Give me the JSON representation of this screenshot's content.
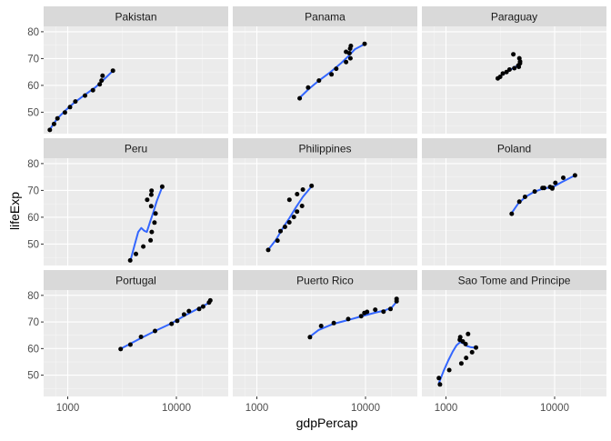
{
  "chart_data": {
    "type": "scatter",
    "facet_variable": "country",
    "xlabel": "gdpPercap",
    "ylabel": "lifeExp",
    "x_scale": "log10",
    "xlim": [
      600,
      30000
    ],
    "ylim": [
      42,
      82
    ],
    "x_ticks": [
      1000,
      10000
    ],
    "x_tick_labels": [
      "1000",
      "10000"
    ],
    "y_ticks": [
      50,
      60,
      70,
      80
    ],
    "y_tick_labels": [
      "50",
      "60",
      "70",
      "80"
    ],
    "smooth": true,
    "grid": true,
    "colors": {
      "panel_bg": "#ebebeb",
      "strip_bg": "#d9d9d9",
      "grid_major": "#ffffff",
      "point": "#000000",
      "smooth_line": "#3366ff",
      "text": "#4d4d4d",
      "strip_text": "#1a1a1a",
      "axis_title": "#000000"
    },
    "facets": [
      {
        "name": "Pakistan",
        "points": [
          [
            684,
            43.4
          ],
          [
            747,
            45.6
          ],
          [
            804,
            47.7
          ],
          [
            942,
            49.9
          ],
          [
            1050,
            51.9
          ],
          [
            1176,
            54.0
          ],
          [
            1443,
            56.2
          ],
          [
            1705,
            58.2
          ],
          [
            1972,
            60.4
          ],
          [
            2049,
            61.8
          ],
          [
            2092,
            63.6
          ],
          [
            2606,
            65.5
          ]
        ]
      },
      {
        "name": "Panama",
        "points": [
          [
            2480,
            55.2
          ],
          [
            2962,
            59.2
          ],
          [
            3729,
            61.8
          ],
          [
            4869,
            64.1
          ],
          [
            5373,
            66.2
          ],
          [
            6618,
            68.7
          ],
          [
            7257,
            70.1
          ],
          [
            7113,
            72.0
          ],
          [
            6616,
            72.5
          ],
          [
            7225,
            73.7
          ],
          [
            7340,
            74.7
          ],
          [
            9809,
            75.5
          ]
        ]
      },
      {
        "name": "Paraguay",
        "points": [
          [
            3000,
            62.6
          ],
          [
            3156,
            63.2
          ],
          [
            3335,
            64.4
          ],
          [
            3610,
            65.0
          ],
          [
            3849,
            65.9
          ],
          [
            4258,
            66.4
          ],
          [
            4679,
            66.9
          ],
          [
            4623,
            67.4
          ],
          [
            4801,
            68.2
          ],
          [
            4811,
            68.9
          ],
          [
            4731,
            70.1
          ],
          [
            4173,
            71.6
          ]
        ]
      },
      {
        "name": "Peru",
        "points": [
          [
            3759,
            43.9
          ],
          [
            4245,
            46.3
          ],
          [
            4957,
            49.1
          ],
          [
            5788,
            51.4
          ],
          [
            5938,
            54.5
          ],
          [
            6281,
            58.0
          ],
          [
            6434,
            61.4
          ],
          [
            5868,
            64.1
          ],
          [
            5388,
            66.5
          ],
          [
            5872,
            68.4
          ],
          [
            5909,
            69.9
          ],
          [
            7409,
            71.4
          ]
        ]
      },
      {
        "name": "Philippines",
        "points": [
          [
            1273,
            47.8
          ],
          [
            1548,
            51.3
          ],
          [
            1650,
            54.8
          ],
          [
            1814,
            56.4
          ],
          [
            1989,
            58.1
          ],
          [
            2189,
            60.1
          ],
          [
            2342,
            62.1
          ],
          [
            2604,
            64.2
          ],
          [
            1992,
            66.5
          ],
          [
            2350,
            68.6
          ],
          [
            2650,
            70.3
          ],
          [
            3190,
            71.7
          ]
        ]
      },
      {
        "name": "Poland",
        "points": [
          [
            4029,
            61.3
          ],
          [
            4734,
            65.8
          ],
          [
            5338,
            67.6
          ],
          [
            6557,
            69.6
          ],
          [
            8006,
            70.9
          ],
          [
            9509,
            70.7
          ],
          [
            9082,
            71.3
          ],
          [
            7739,
            70.9
          ],
          [
            9508,
            71.0
          ],
          [
            10160,
            72.8
          ],
          [
            12002,
            74.7
          ],
          [
            15390,
            75.6
          ]
        ]
      },
      {
        "name": "Portugal",
        "points": [
          [
            3068,
            59.8
          ],
          [
            3775,
            61.5
          ],
          [
            4727,
            64.4
          ],
          [
            6362,
            66.6
          ],
          [
            9022,
            69.3
          ],
          [
            10172,
            70.4
          ],
          [
            11753,
            72.8
          ],
          [
            13039,
            74.1
          ],
          [
            16207,
            74.9
          ],
          [
            17641,
            75.8
          ],
          [
            19971,
            77.3
          ],
          [
            20510,
            78.1
          ]
        ]
      },
      {
        "name": "Puerto Rico",
        "points": [
          [
            3082,
            64.3
          ],
          [
            3907,
            68.5
          ],
          [
            5109,
            69.6
          ],
          [
            6929,
            71.1
          ],
          [
            9123,
            72.2
          ],
          [
            9771,
            73.4
          ],
          [
            10331,
            73.8
          ],
          [
            12281,
            74.6
          ],
          [
            14642,
            73.9
          ],
          [
            16999,
            74.9
          ],
          [
            19329,
            77.8
          ],
          [
            19329,
            78.7
          ]
        ]
      },
      {
        "name": "Sao Tome and Principe",
        "points": [
          [
            880,
            46.5
          ],
          [
            860,
            48.9
          ],
          [
            1072,
            51.9
          ],
          [
            1385,
            54.4
          ],
          [
            1533,
            56.5
          ],
          [
            1738,
            58.6
          ],
          [
            1890,
            60.4
          ],
          [
            1516,
            61.7
          ],
          [
            1429,
            62.7
          ],
          [
            1339,
            63.3
          ],
          [
            1353,
            64.3
          ],
          [
            1598,
            65.5
          ]
        ]
      }
    ],
    "smooth_curves": {
      "Pakistan": [
        [
          684,
          43.6
        ],
        [
          800,
          47.6
        ],
        [
          950,
          50.6
        ],
        [
          1150,
          53.6
        ],
        [
          1450,
          56.6
        ],
        [
          1800,
          59.3
        ],
        [
          2100,
          61.8
        ],
        [
          2600,
          65.4
        ]
      ],
      "Panama": [
        [
          2480,
          55.4
        ],
        [
          3000,
          58.6
        ],
        [
          3700,
          61.7
        ],
        [
          4800,
          65.1
        ],
        [
          6000,
          68.4
        ],
        [
          7000,
          71.0
        ],
        [
          8000,
          73.5
        ],
        [
          9809,
          75.4
        ]
      ],
      "Paraguay": [
        [
          3000,
          62.8
        ],
        [
          3300,
          64.0
        ],
        [
          3700,
          65.2
        ],
        [
          4100,
          66.3
        ],
        [
          4500,
          67.3
        ],
        [
          4811,
          68.2
        ]
      ],
      "Peru": [
        [
          3759,
          43.5
        ],
        [
          4100,
          49.2
        ],
        [
          4450,
          54.5
        ],
        [
          4750,
          56.0
        ],
        [
          5050,
          55.0
        ],
        [
          5350,
          54.5
        ],
        [
          5700,
          58.0
        ],
        [
          6100,
          61.5
        ],
        [
          6600,
          66.0
        ],
        [
          7409,
          71.3
        ]
      ],
      "Philippines": [
        [
          1273,
          47.9
        ],
        [
          1500,
          51.6
        ],
        [
          1750,
          56.2
        ],
        [
          2000,
          59.8
        ],
        [
          2300,
          63.8
        ],
        [
          2650,
          67.6
        ],
        [
          3190,
          71.5
        ]
      ],
      "Poland": [
        [
          4029,
          61.6
        ],
        [
          4600,
          65.0
        ],
        [
          5400,
          67.6
        ],
        [
          6500,
          69.5
        ],
        [
          8000,
          70.8
        ],
        [
          9500,
          71.1
        ],
        [
          11500,
          73.0
        ],
        [
          15390,
          75.6
        ]
      ],
      "Portugal": [
        [
          3068,
          59.9
        ],
        [
          4500,
          63.5
        ],
        [
          6500,
          66.8
        ],
        [
          9000,
          69.5
        ],
        [
          11500,
          72.0
        ],
        [
          15000,
          74.5
        ],
        [
          18000,
          76.2
        ],
        [
          20510,
          77.5
        ]
      ],
      "Puerto Rico": [
        [
          3082,
          64.5
        ],
        [
          3700,
          67.0
        ],
        [
          5000,
          69.2
        ],
        [
          7000,
          70.8
        ],
        [
          9500,
          72.3
        ],
        [
          12500,
          73.6
        ],
        [
          15000,
          74.3
        ],
        [
          17500,
          75.5
        ],
        [
          19329,
          77.6
        ]
      ],
      "Sao Tome and Principe": [
        [
          860,
          47.0
        ],
        [
          950,
          51.5
        ],
        [
          1050,
          55.5
        ],
        [
          1150,
          58.8
        ],
        [
          1250,
          61.2
        ],
        [
          1350,
          62.4
        ],
        [
          1450,
          61.9
        ],
        [
          1550,
          61.0
        ],
        [
          1700,
          60.5
        ],
        [
          1890,
          60.3
        ]
      ]
    }
  }
}
